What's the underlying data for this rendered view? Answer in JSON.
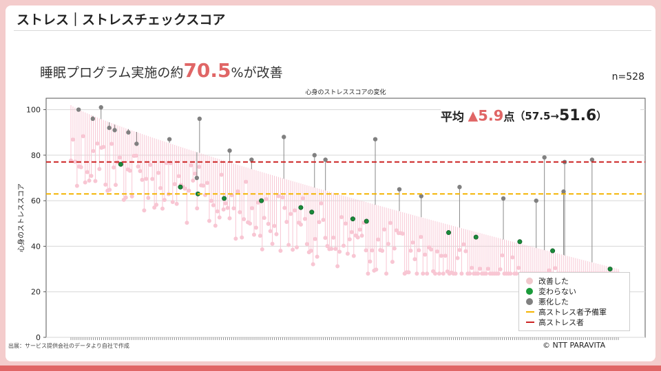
{
  "slide": {
    "title": "ストレス｜ストレスチェックスコア",
    "headline_prefix": "睡眠プログラム実施の約",
    "headline_value": "70.5",
    "headline_suffix": "%が改善",
    "n_label": "n=528",
    "source": "出展：サービス提供会社のデータより自社で作成",
    "copyright": "©  NTT PARAVITA"
  },
  "average": {
    "label": "平均",
    "triangle": "▲",
    "delta": "5.9",
    "unit": "点",
    "paren_open": "（57.5→",
    "after": "51.6",
    "paren_close": "）"
  },
  "colors": {
    "improved": "#f8c6d3",
    "unchanged": "#1a8a3a",
    "worsened": "#808080",
    "pre_high_stress": "#f4b400",
    "high_stress": "#cc2222",
    "accent": "#e06666"
  },
  "chart_data": {
    "type": "scatter",
    "title": "心身のストレススコアの変化",
    "ylabel": "心身のストレススコア",
    "xlabel": "",
    "ylim": [
      0,
      105
    ],
    "yticks": [
      0,
      20,
      40,
      60,
      80,
      100
    ],
    "grid": true,
    "n_participants": 528,
    "series_order": "participants sorted by descending pre-program score",
    "reference_lines": [
      {
        "name": "高ストレス者予備軍",
        "value": 63,
        "style": "dashed",
        "color": "#f4b400"
      },
      {
        "name": "高ストレス者",
        "value": 77,
        "style": "dashed",
        "color": "#cc2222"
      }
    ],
    "legend": {
      "position": "lower-right",
      "entries": [
        {
          "name": "改善した",
          "marker": "dot",
          "color": "#f8c6d3"
        },
        {
          "name": "変わらない",
          "marker": "dot",
          "color": "#1a8a3a"
        },
        {
          "name": "悪化した",
          "marker": "dot",
          "color": "#808080"
        },
        {
          "name": "高ストレス者予備軍",
          "marker": "line",
          "color": "#f4b400"
        },
        {
          "name": "高ストレス者",
          "marker": "line",
          "color": "#cc2222"
        }
      ]
    },
    "worsened_points": [
      [
        0.014,
        100
      ],
      [
        0.055,
        101
      ],
      [
        0.08,
        91
      ],
      [
        0.105,
        90
      ],
      [
        0.235,
        96
      ],
      [
        0.389,
        88
      ],
      [
        0.556,
        87
      ],
      [
        0.865,
        79
      ],
      [
        0.902,
        77
      ],
      [
        0.952,
        78
      ],
      [
        0.04,
        96
      ],
      [
        0.07,
        92
      ],
      [
        0.23,
        70
      ],
      [
        0.29,
        82
      ],
      [
        0.12,
        85
      ],
      [
        0.18,
        87
      ],
      [
        0.33,
        78
      ],
      [
        0.445,
        80
      ],
      [
        0.465,
        78
      ],
      [
        0.71,
        66
      ],
      [
        0.9,
        64
      ],
      [
        0.79,
        61
      ],
      [
        0.85,
        60
      ],
      [
        0.64,
        62
      ],
      [
        0.6,
        65
      ]
    ],
    "unchanged_points": [
      [
        0.091,
        76
      ],
      [
        0.232,
        63
      ],
      [
        0.348,
        60
      ],
      [
        0.42,
        57
      ],
      [
        0.44,
        55
      ],
      [
        0.515,
        52
      ],
      [
        0.74,
        44
      ],
      [
        0.88,
        38
      ],
      [
        0.985,
        30
      ],
      [
        0.2,
        66
      ],
      [
        0.28,
        61
      ],
      [
        0.69,
        46
      ],
      [
        0.82,
        42
      ],
      [
        0.54,
        51
      ]
    ]
  }
}
